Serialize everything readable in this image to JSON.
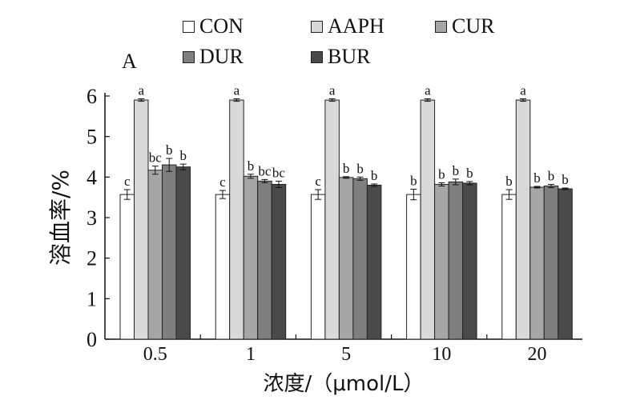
{
  "chart_data": {
    "type": "bar",
    "panel_label": "A",
    "xlabel": "浓度/（μmol/L）",
    "ylabel": "溶血率/%",
    "ylim": [
      0,
      6
    ],
    "yticks": [
      "0",
      "1",
      "2",
      "3",
      "4",
      "5",
      "6"
    ],
    "categories": [
      "0.5",
      "1",
      "5",
      "10",
      "20"
    ],
    "series": [
      {
        "name": "CON",
        "color": "#ffffff",
        "values": [
          3.57,
          3.57,
          3.57,
          3.57,
          3.57
        ],
        "errors": [
          0.12,
          0.1,
          0.12,
          0.13,
          0.12
        ],
        "labels": [
          "c",
          "c",
          "c",
          "b",
          "b"
        ]
      },
      {
        "name": "AAPH",
        "color": "#d9d9d9",
        "values": [
          5.9,
          5.9,
          5.9,
          5.9,
          5.9
        ],
        "errors": [
          0.03,
          0.03,
          0.03,
          0.03,
          0.03
        ],
        "labels": [
          "a",
          "a",
          "a",
          "a",
          "a"
        ]
      },
      {
        "name": "CUR",
        "color": "#a6a6a6",
        "values": [
          4.17,
          4.02,
          3.99,
          3.82,
          3.75
        ],
        "errors": [
          0.1,
          0.05,
          0.02,
          0.04,
          0.02
        ],
        "labels": [
          "bc",
          "b",
          "b",
          "b",
          "b"
        ]
      },
      {
        "name": "DUR",
        "color": "#7f7f7f",
        "values": [
          4.3,
          3.9,
          3.96,
          3.88,
          3.78
        ],
        "errors": [
          0.16,
          0.04,
          0.04,
          0.07,
          0.04
        ],
        "labels": [
          "b",
          "bc",
          "b",
          "b",
          "b"
        ]
      },
      {
        "name": "BUR",
        "color": "#4a4a4a",
        "values": [
          4.25,
          3.82,
          3.8,
          3.85,
          3.71
        ],
        "errors": [
          0.07,
          0.08,
          0.03,
          0.04,
          0.02
        ],
        "labels": [
          "b",
          "bc",
          "b",
          "b",
          "b"
        ]
      }
    ]
  }
}
